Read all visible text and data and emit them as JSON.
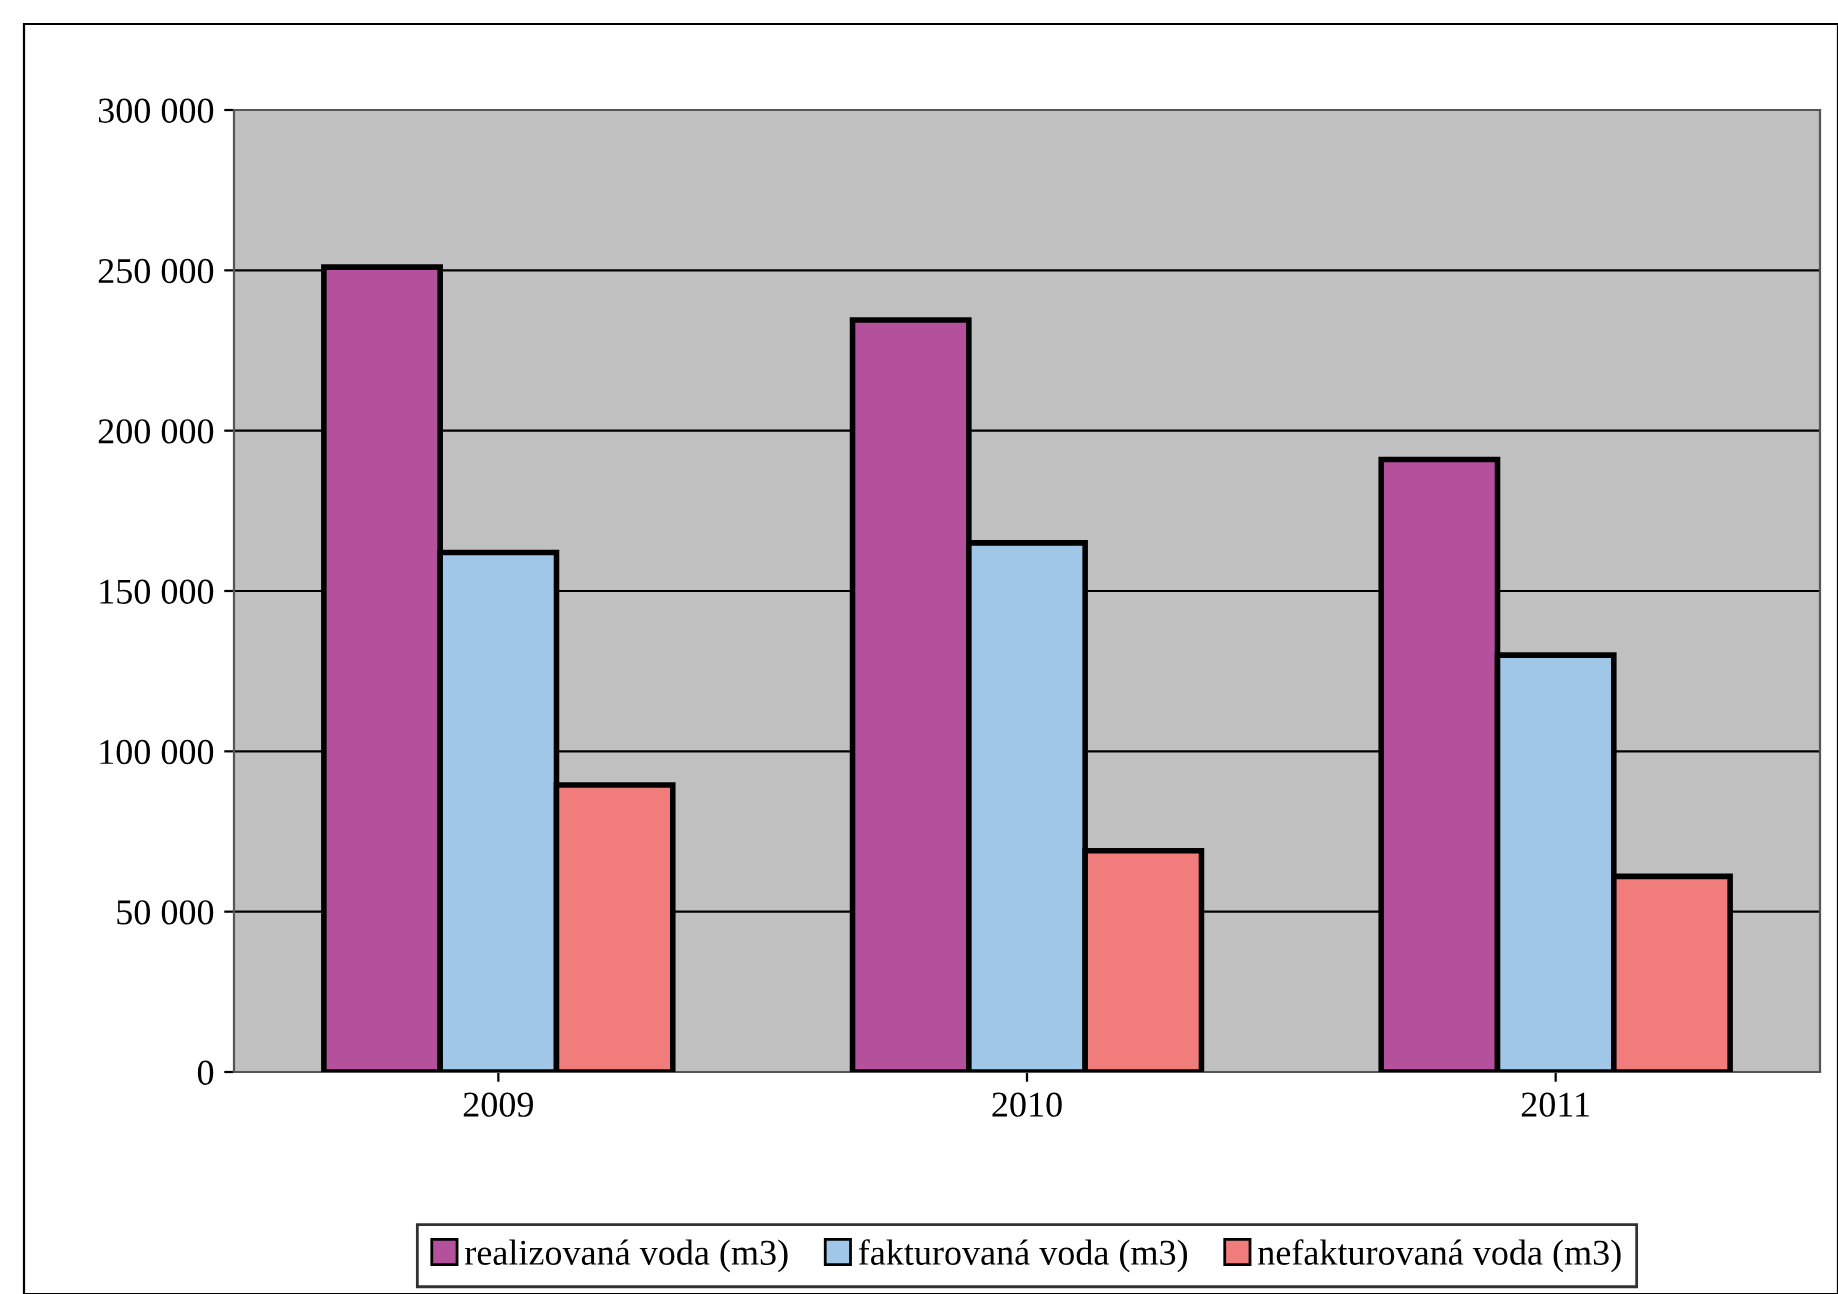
{
  "chart_data": {
    "type": "bar",
    "categories": [
      "2009",
      "2010",
      "2011"
    ],
    "series": [
      {
        "name": "realizovaná voda (m3)",
        "color": "#b5519c",
        "values": [
          251000,
          234500,
          191000
        ]
      },
      {
        "name": "fakturovaná voda (m3)",
        "color": "#a0c6e8",
        "values": [
          162000,
          165000,
          130000
        ]
      },
      {
        "name": "nefakturovaná voda (m3)",
        "color": "#f07c7c",
        "values": [
          89500,
          69000,
          61000
        ]
      }
    ],
    "ylim": [
      0,
      300000
    ],
    "yticks": [
      {
        "value": 0,
        "label": "0"
      },
      {
        "value": 50000,
        "label": "50 000"
      },
      {
        "value": 100000,
        "label": "100 000"
      },
      {
        "value": 150000,
        "label": "150 000"
      },
      {
        "value": 200000,
        "label": "200 000"
      },
      {
        "value": 250000,
        "label": "250 000"
      },
      {
        "value": 300000,
        "label": "300 000"
      }
    ],
    "grid": "y",
    "legend": "bottom"
  }
}
